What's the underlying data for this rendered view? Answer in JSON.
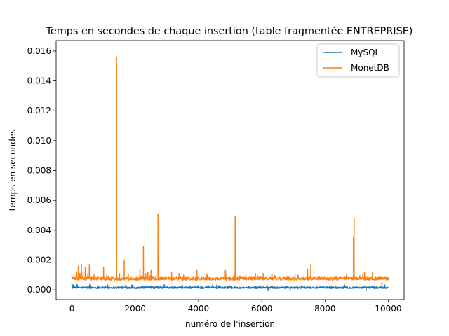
{
  "chart_data": {
    "type": "line",
    "title": "Temps en secondes de chaque insertion (table fragmentée ENTREPRISE)",
    "xlabel": "numéro de l'insertion",
    "ylabel": "temps en secondes",
    "xlim": [
      -500,
      10500
    ],
    "ylim": [
      -0.00065,
      0.0167
    ],
    "x_ticks": [
      0,
      2000,
      4000,
      6000,
      8000,
      10000
    ],
    "x_tick_labels": [
      "0",
      "2000",
      "4000",
      "6000",
      "8000",
      "10000"
    ],
    "y_ticks": [
      0.0,
      0.002,
      0.004,
      0.006,
      0.008,
      0.01,
      0.012,
      0.014,
      0.016
    ],
    "y_tick_labels": [
      "0.000",
      "0.002",
      "0.004",
      "0.006",
      "0.008",
      "0.010",
      "0.012",
      "0.014",
      "0.016"
    ],
    "grid": false,
    "legend_position": "top-right",
    "series": [
      {
        "name": "MySQL",
        "color": "#1f77b4",
        "baseline": 0.00015,
        "noise": 6e-05,
        "x_range": [
          0,
          10000
        ],
        "spikes": [
          {
            "x": 0,
            "y": 0.0004
          },
          {
            "x": 2700,
            "y": 0.00025
          },
          {
            "x": 6200,
            "y": -5e-05
          },
          {
            "x": 6900,
            "y": -5e-05
          },
          {
            "x": 9300,
            "y": -5e-05
          },
          {
            "x": 9800,
            "y": 0.0005
          }
        ]
      },
      {
        "name": "MonetDB",
        "color": "#ff7f0e",
        "baseline": 0.00075,
        "noise": 0.0001,
        "x_range": [
          0,
          10000
        ],
        "spikes": [
          {
            "x": 0,
            "y": 0.001
          },
          {
            "x": 150,
            "y": 0.0012
          },
          {
            "x": 200,
            "y": 0.0016
          },
          {
            "x": 250,
            "y": 0.0011
          },
          {
            "x": 300,
            "y": 0.0017
          },
          {
            "x": 350,
            "y": 0.0012
          },
          {
            "x": 420,
            "y": 0.0015
          },
          {
            "x": 500,
            "y": 0.001
          },
          {
            "x": 550,
            "y": 0.0017
          },
          {
            "x": 700,
            "y": 0.001
          },
          {
            "x": 800,
            "y": 0.0009
          },
          {
            "x": 1000,
            "y": 0.0015
          },
          {
            "x": 1100,
            "y": 0.001
          },
          {
            "x": 1410,
            "y": 0.0156
          },
          {
            "x": 1500,
            "y": 0.0011
          },
          {
            "x": 1650,
            "y": 0.002
          },
          {
            "x": 2150,
            "y": 0.0014
          },
          {
            "x": 2260,
            "y": 0.0029
          },
          {
            "x": 2400,
            "y": 0.0012
          },
          {
            "x": 2500,
            "y": 0.0013
          },
          {
            "x": 2720,
            "y": 0.0051
          },
          {
            "x": 3150,
            "y": 0.0012
          },
          {
            "x": 3950,
            "y": 0.0013
          },
          {
            "x": 4850,
            "y": 0.0013
          },
          {
            "x": 5160,
            "y": 0.0049
          },
          {
            "x": 5500,
            "y": 0.001
          },
          {
            "x": 5800,
            "y": 0.0011
          },
          {
            "x": 6050,
            "y": 0.0011
          },
          {
            "x": 7050,
            "y": 0.001
          },
          {
            "x": 7450,
            "y": 0.0014
          },
          {
            "x": 7550,
            "y": 0.0017
          },
          {
            "x": 8900,
            "y": 0.0035
          },
          {
            "x": 8920,
            "y": 0.0048
          },
          {
            "x": 9250,
            "y": 0.0012
          },
          {
            "x": 9500,
            "y": 0.0012
          },
          {
            "x": 9750,
            "y": 0.0009
          }
        ]
      }
    ]
  }
}
